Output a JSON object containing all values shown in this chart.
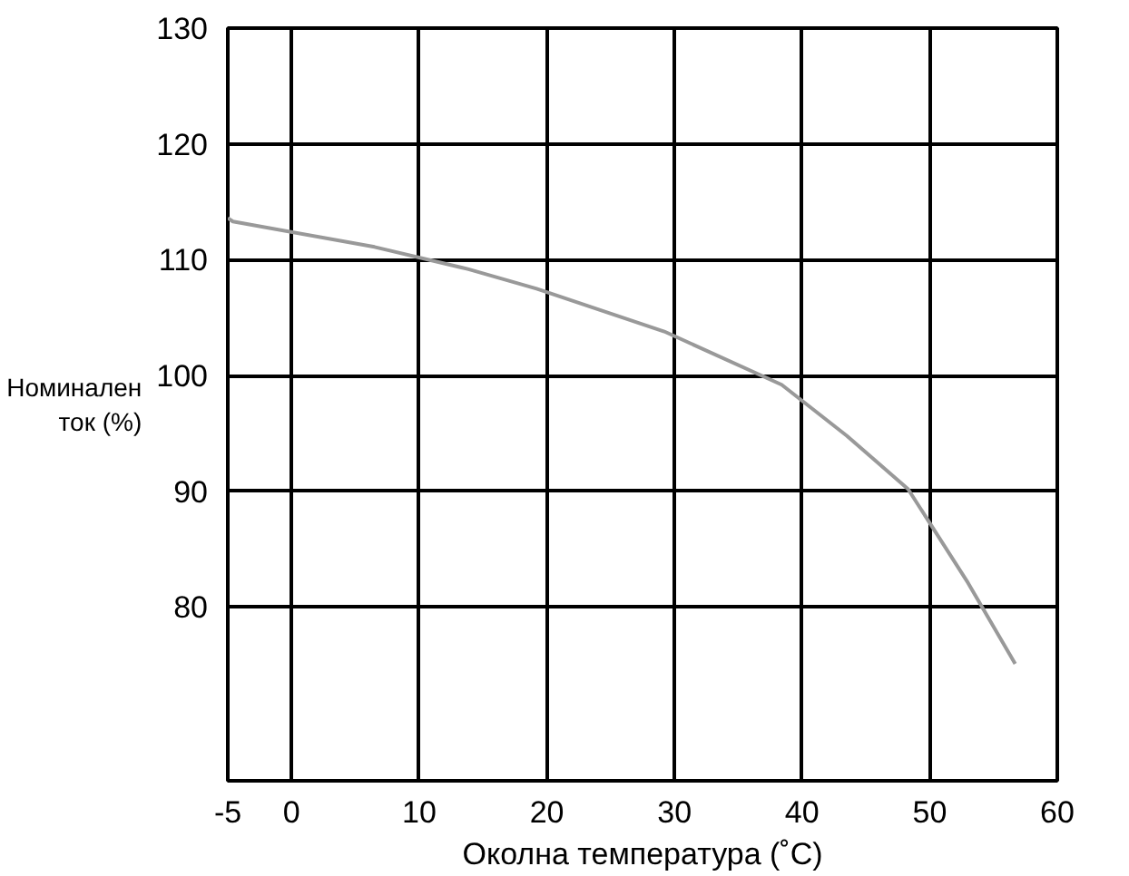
{
  "chart_data": {
    "type": "line",
    "xlabel": "Околна температура (˚C)",
    "ylabel": "Номинален ток (%)",
    "x": [
      -5,
      -4.6,
      6.5,
      13.8,
      19.2,
      29.2,
      38.4,
      43.5,
      48.3,
      53,
      56.7
    ],
    "series": [
      {
        "color": "#999999",
        "values": [
          113.6,
          113.3,
          111.1,
          109.2,
          107.5,
          103.8,
          99.2,
          94.8,
          90.2,
          82.1,
          75.1
        ]
      }
    ],
    "xlim": [
      -5,
      60
    ],
    "xticks": [
      -5,
      0,
      10,
      20,
      30,
      40,
      50,
      60
    ],
    "ylim": [
      65,
      130
    ],
    "yticks": [
      80,
      90,
      100,
      110,
      120,
      130
    ],
    "grid": true,
    "marker": "none",
    "line_style": "solid"
  }
}
